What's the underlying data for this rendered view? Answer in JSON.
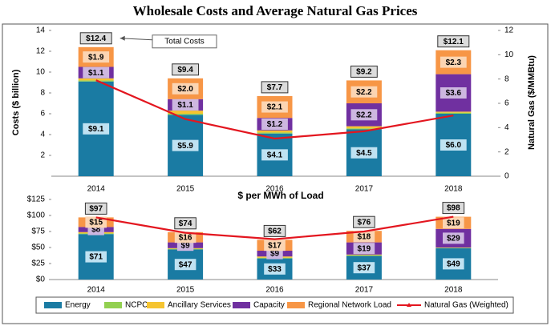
{
  "title": "Wholesale Costs and Average Natural Gas Prices",
  "chart_data": [
    {
      "type": "bar",
      "stacked": true,
      "annotation": "Total Costs",
      "ylabel": "Costs ($ billion)",
      "y2label": "Natural Gas ($/MMBtu)",
      "categories": [
        "2014",
        "2015",
        "2016",
        "2017",
        "2018"
      ],
      "ylim": [
        0,
        14
      ],
      "yticks": [
        2,
        4,
        6,
        8,
        10,
        12,
        14
      ],
      "y2lim": [
        0,
        12
      ],
      "y2ticks": [
        0,
        2,
        4,
        6,
        8,
        10,
        12
      ],
      "series": [
        {
          "name": "Energy",
          "color": "#1a7ba3",
          "label_bg": "#bfe2f2",
          "values": [
            9.1,
            5.9,
            4.1,
            4.5,
            6.0
          ],
          "value_labels": [
            "$9.1",
            "$5.9",
            "$4.1",
            "$4.5",
            "$6.0"
          ]
        },
        {
          "name": "NCPC",
          "color": "#92d050",
          "values": [
            0.1,
            0.1,
            0.1,
            0.1,
            0.1
          ]
        },
        {
          "name": "Ancillary Services",
          "color": "#f5c431",
          "values": [
            0.2,
            0.3,
            0.2,
            0.2,
            0.1
          ]
        },
        {
          "name": "Capacity",
          "color": "#7030a0",
          "label_bg": "#cdb7e0",
          "values": [
            1.1,
            1.1,
            1.2,
            2.2,
            3.6
          ],
          "value_labels": [
            "$1.1",
            "$1.1",
            "$1.2",
            "$2.2",
            "$3.6"
          ]
        },
        {
          "name": "Regional Network Load",
          "color": "#f79646",
          "label_bg": "#fbd5b3",
          "values": [
            1.9,
            2.0,
            2.1,
            2.2,
            2.3
          ],
          "value_labels": [
            "$1.9",
            "$2.0",
            "$2.1",
            "$2.2",
            "$2.3"
          ]
        },
        {
          "name": "Natural Gas (Weighted)",
          "color": "#e3161f",
          "kind": "line",
          "axis": "y2",
          "values": [
            7.9,
            4.7,
            3.1,
            3.7,
            5.0
          ]
        }
      ],
      "totals": {
        "values": [
          12.4,
          9.4,
          7.7,
          9.2,
          12.1
        ],
        "value_labels": [
          "$12.4",
          "$9.4",
          "$7.7",
          "$9.2",
          "$12.1"
        ]
      }
    },
    {
      "type": "bar",
      "stacked": true,
      "title": "$ per MWh of Load",
      "categories": [
        "2014",
        "2015",
        "2016",
        "2017",
        "2018"
      ],
      "ylim": [
        0,
        125
      ],
      "yticks": [
        {
          "value": 0,
          "label": "$0"
        },
        {
          "value": 25,
          "label": "$25"
        },
        {
          "value": 50,
          "label": "$50"
        },
        {
          "value": 75,
          "label": "$75"
        },
        {
          "value": 100,
          "label": "$100"
        },
        {
          "value": 125,
          "label": "$125"
        }
      ],
      "series": [
        {
          "name": "Energy",
          "color": "#1a7ba3",
          "label_bg": "#bfe2f2",
          "values": [
            71,
            47,
            33,
            37,
            49
          ],
          "value_labels": [
            "$71",
            "$47",
            "$33",
            "$37",
            "$49"
          ]
        },
        {
          "name": "NCPC",
          "color": "#92d050",
          "values": [
            1,
            1,
            1,
            1,
            0.5
          ]
        },
        {
          "name": "Ancillary Services",
          "color": "#f5c431",
          "values": [
            2,
            1,
            2,
            1,
            0.5
          ]
        },
        {
          "name": "Capacity",
          "color": "#7030a0",
          "label_bg": "#cdb7e0",
          "values": [
            8,
            9,
            9,
            19,
            29
          ],
          "value_labels": [
            "$8",
            "$9",
            "$9",
            "$19",
            "$29"
          ]
        },
        {
          "name": "Regional Network Load",
          "color": "#f79646",
          "label_bg": "#fbd5b3",
          "values": [
            15,
            16,
            17,
            18,
            19
          ],
          "value_labels": [
            "$15",
            "$16",
            "$17",
            "$18",
            "$19"
          ]
        },
        {
          "name": "Natural Gas (Weighted)",
          "color": "#e3161f",
          "kind": "line",
          "values": [
            97,
            73,
            63,
            75,
            98
          ]
        }
      ],
      "totals": {
        "values": [
          97,
          74,
          62,
          76,
          98
        ],
        "value_labels": [
          "$97",
          "$74",
          "$62",
          "$76",
          "$98"
        ]
      }
    }
  ]
}
